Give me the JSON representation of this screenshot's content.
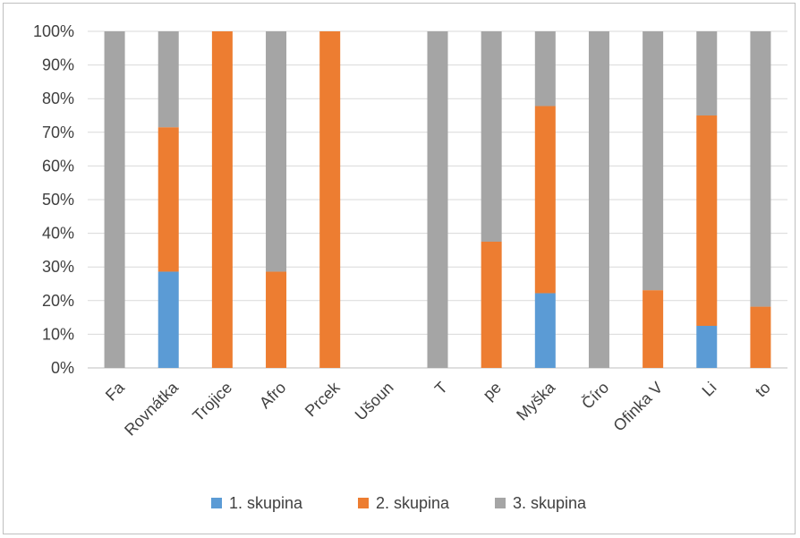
{
  "chart_data": {
    "type": "bar",
    "stacked": true,
    "percent": true,
    "categories": [
      "Fa",
      "Rovnátka",
      "Trojice",
      "Afro",
      "Prcek",
      "Ušoun",
      "T",
      "pe",
      "Myška",
      "Číro",
      "Ofinka V",
      "Li",
      "to"
    ],
    "series": [
      {
        "name": "1. skupina",
        "color": "#5b9bd5",
        "values": [
          0,
          28.6,
          0,
          0,
          0,
          0,
          0,
          0,
          22.2,
          0,
          0,
          12.5,
          0
        ]
      },
      {
        "name": "2. skupina",
        "color": "#ed7d31",
        "values": [
          0,
          42.9,
          100,
          28.6,
          100,
          0,
          0,
          37.5,
          55.6,
          0,
          23.1,
          62.5,
          18.2
        ]
      },
      {
        "name": "3. skupina",
        "color": "#a5a5a5",
        "values": [
          100,
          28.5,
          0,
          71.4,
          0,
          0,
          100,
          62.5,
          22.2,
          100,
          76.9,
          25,
          81.8
        ]
      }
    ],
    "yticks": [
      "0%",
      "10%",
      "20%",
      "30%",
      "40%",
      "50%",
      "60%",
      "70%",
      "80%",
      "90%",
      "100%"
    ],
    "ylim": [
      0,
      100
    ],
    "grid": true,
    "legend_position": "bottom",
    "title": "",
    "xlabel": "",
    "ylabel": ""
  }
}
